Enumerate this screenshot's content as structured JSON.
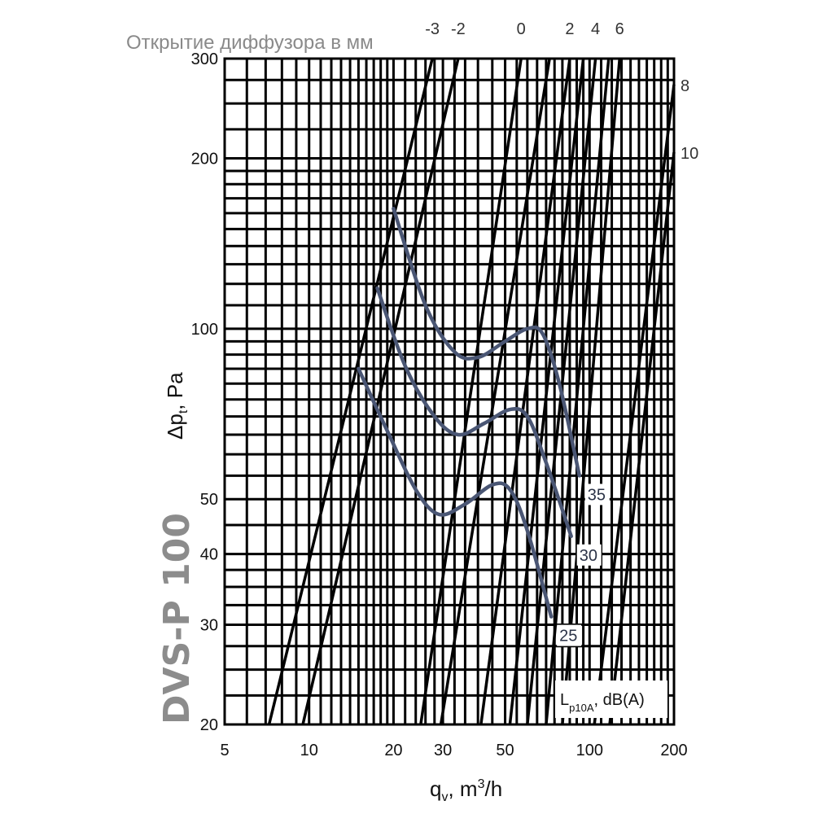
{
  "header": {
    "heading": "Открытие диффузора в мм",
    "model": "DVS-P 100"
  },
  "chart_data": {
    "type": "line",
    "title": "",
    "xlabel": {
      "main": "q",
      "sub": "v",
      "rest": ", m",
      "sup": "3",
      "tail": "/h"
    },
    "ylabel": {
      "main": "Δp",
      "sub": "t",
      "rest": ", Pa"
    },
    "x_scale": "log",
    "y_scale": "log",
    "xlim": [
      5,
      200
    ],
    "ylim": [
      20,
      300
    ],
    "x_ticks": [
      5,
      10,
      20,
      30,
      50,
      100,
      200
    ],
    "y_ticks": [
      20,
      30,
      40,
      50,
      100,
      200,
      300
    ],
    "x_grid": [
      5,
      6,
      7,
      8,
      9,
      10,
      11,
      12,
      13,
      14,
      15,
      16,
      17,
      18,
      19,
      20,
      22,
      24,
      26,
      28,
      30,
      33,
      36,
      40,
      45,
      50,
      55,
      60,
      65,
      70,
      75,
      80,
      85,
      90,
      95,
      100,
      110,
      120,
      130,
      140,
      150,
      160,
      170,
      180,
      190,
      200
    ],
    "y_grid": [
      20,
      22.5,
      25,
      27.5,
      30,
      32.5,
      35,
      37.5,
      40,
      45,
      50,
      55,
      60,
      65,
      70,
      75,
      80,
      85,
      90,
      95,
      100,
      110,
      120,
      130,
      140,
      150,
      160,
      170,
      180,
      190,
      200,
      225,
      250,
      275,
      300
    ],
    "grid": true,
    "diffuser_openings": {
      "label_items": [
        {
          "label": "-3",
          "x_at_top": 27.5
        },
        {
          "label": "-2",
          "x_at_top": 34
        },
        {
          "label": "0",
          "x_at_top": 57
        },
        {
          "label": "2",
          "x_at_top": 85
        },
        {
          "label": "4",
          "x_at_top": 105
        },
        {
          "label": "6",
          "x_at_top": 128
        },
        {
          "label": "8",
          "y_at_right": 270
        },
        {
          "label": "10",
          "y_at_right": 205
        }
      ],
      "lines": [
        {
          "opening": "-3",
          "points": [
            [
              7.2,
              20
            ],
            [
              27.5,
              300
            ]
          ]
        },
        {
          "opening": "-2",
          "points": [
            [
              9.5,
              20
            ],
            [
              34,
              300
            ]
          ]
        },
        {
          "opening": "0",
          "points": [
            [
              25,
              20
            ],
            [
              57,
              300
            ]
          ]
        },
        {
          "opening": "",
          "points": [
            [
              29.5,
              20
            ],
            [
              72,
              300
            ]
          ]
        },
        {
          "opening": "2",
          "points": [
            [
              41,
              20
            ],
            [
              85,
              300
            ]
          ]
        },
        {
          "opening": "",
          "points": [
            [
              52,
              20
            ],
            [
              95,
              300
            ]
          ]
        },
        {
          "opening": "4",
          "points": [
            [
              60,
              20
            ],
            [
              105,
              300
            ]
          ]
        },
        {
          "opening": "",
          "points": [
            [
              70,
              20
            ],
            [
              117,
              300
            ]
          ]
        },
        {
          "opening": "6",
          "points": [
            [
              80,
              20
            ],
            [
              128,
              300
            ]
          ]
        },
        {
          "opening": "8",
          "points": [
            [
              104,
              20
            ],
            [
              200,
              270
            ]
          ]
        },
        {
          "opening": "10",
          "points": [
            [
              118,
              20
            ],
            [
              200,
              205
            ]
          ]
        }
      ]
    },
    "sound_level": {
      "label": {
        "main": "L",
        "sub": "p10A",
        "rest": ", dB(A)"
      },
      "series": [
        {
          "name": "35",
          "points": [
            [
              20,
              163
            ],
            [
              26,
              110
            ],
            [
              33,
              91
            ],
            [
              40,
              89
            ],
            [
              50,
              95
            ],
            [
              60,
              100
            ],
            [
              68,
              98
            ],
            [
              78,
              80
            ],
            [
              92,
              55
            ]
          ]
        },
        {
          "name": "30",
          "points": [
            [
              17.5,
              118
            ],
            [
              22,
              86
            ],
            [
              28,
              70
            ],
            [
              34,
              65
            ],
            [
              42,
              68
            ],
            [
              52,
              72
            ],
            [
              60,
              70
            ],
            [
              70,
              58
            ],
            [
              86,
              43
            ]
          ]
        },
        {
          "name": "25",
          "points": [
            [
              15,
              85
            ],
            [
              19,
              66
            ],
            [
              24,
              52
            ],
            [
              29,
              47
            ],
            [
              36,
              49
            ],
            [
              45,
              53
            ],
            [
              52,
              52
            ],
            [
              60,
              44
            ],
            [
              73,
              31
            ]
          ]
        }
      ]
    }
  }
}
